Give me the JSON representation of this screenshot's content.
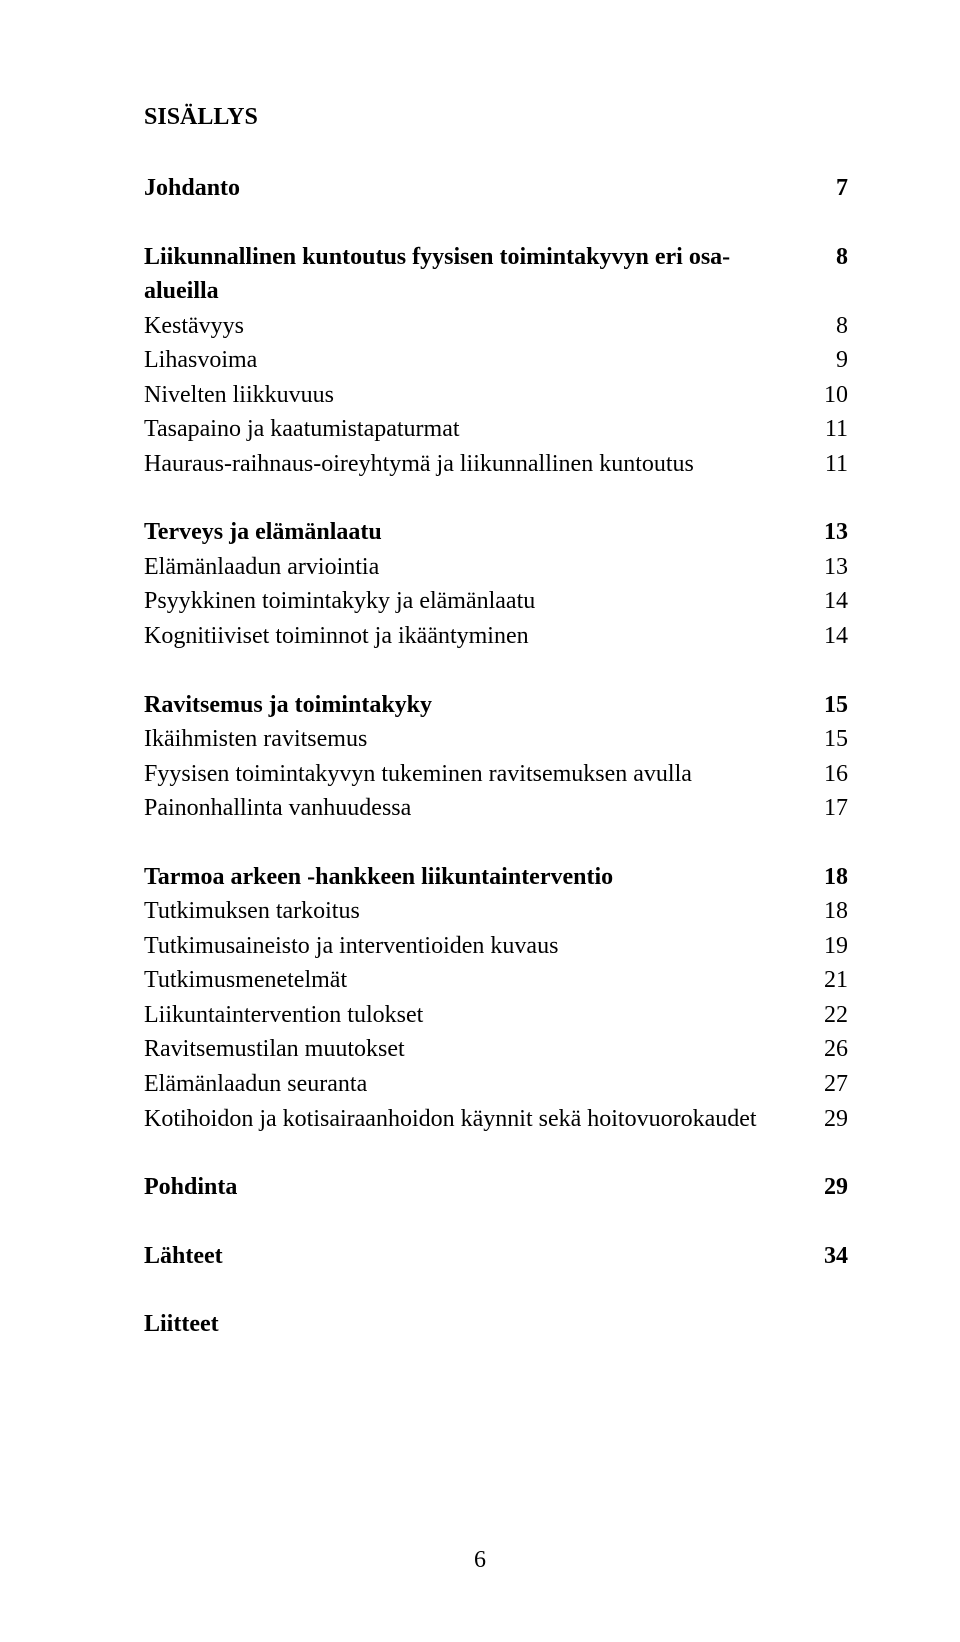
{
  "title": "SISÄLLYS",
  "page_number": "6",
  "typography": {
    "font_family": "Times New Roman",
    "body_fontsize_pt": 12,
    "title_fontsize_pt": 12,
    "title_weight": "bold"
  },
  "colors": {
    "text": "#000000",
    "background": "#ffffff"
  },
  "groups": [
    {
      "header": {
        "label": "Johdanto",
        "page": "7"
      },
      "items": []
    },
    {
      "header": {
        "label": "Liikunnallinen kuntoutus fyysisen toimintakyvyn eri osa-alueilla",
        "page": "8"
      },
      "items": [
        {
          "label": "Kestävyys",
          "page": "8"
        },
        {
          "label": "Lihasvoima",
          "page": "9"
        },
        {
          "label": "Nivelten liikkuvuus",
          "page": "10"
        },
        {
          "label": "Tasapaino ja kaatumistapaturmat",
          "page": "11"
        },
        {
          "label": "Hauraus-raihnaus-oireyhtymä ja liikunnallinen kuntoutus",
          "page": "11"
        }
      ]
    },
    {
      "header": {
        "label": "Terveys ja elämänlaatu",
        "page": "13"
      },
      "items": [
        {
          "label": "Elämänlaadun arviointia",
          "page": "13"
        },
        {
          "label": "Psyykkinen toimintakyky ja elämänlaatu",
          "page": "14"
        },
        {
          "label": "Kognitiiviset toiminnot ja ikääntyminen",
          "page": "14"
        }
      ]
    },
    {
      "header": {
        "label": "Ravitsemus ja toimintakyky",
        "page": "15"
      },
      "items": [
        {
          "label": "Ikäihmisten ravitsemus",
          "page": "15"
        },
        {
          "label": "Fyysisen toimintakyvyn tukeminen ravitsemuksen avulla",
          "page": "16"
        },
        {
          "label": "Painonhallinta vanhuudessa",
          "page": "17"
        }
      ]
    },
    {
      "header": {
        "label": "Tarmoa arkeen -hankkeen liikuntainterventio",
        "page": "18"
      },
      "items": [
        {
          "label": "Tutkimuksen tarkoitus",
          "page": "18"
        },
        {
          "label": "Tutkimusaineisto ja interventioiden kuvaus",
          "page": "19"
        },
        {
          "label": "Tutkimusmenetelmät",
          "page": "21"
        },
        {
          "label": "Liikuntaintervention tulokset",
          "page": "22"
        },
        {
          "label": "Ravitsemustilan muutokset",
          "page": "26"
        },
        {
          "label": "Elämänlaadun seuranta",
          "page": "27"
        },
        {
          "label": "Kotihoidon ja kotisairaanhoidon käynnit sekä hoitovuorokaudet",
          "page": "29"
        }
      ]
    },
    {
      "header": {
        "label": "Pohdinta",
        "page": "29"
      },
      "items": []
    },
    {
      "header": {
        "label": "Lähteet",
        "page": "34"
      },
      "items": []
    },
    {
      "header": {
        "label": "Liitteet",
        "page": ""
      },
      "items": []
    }
  ]
}
